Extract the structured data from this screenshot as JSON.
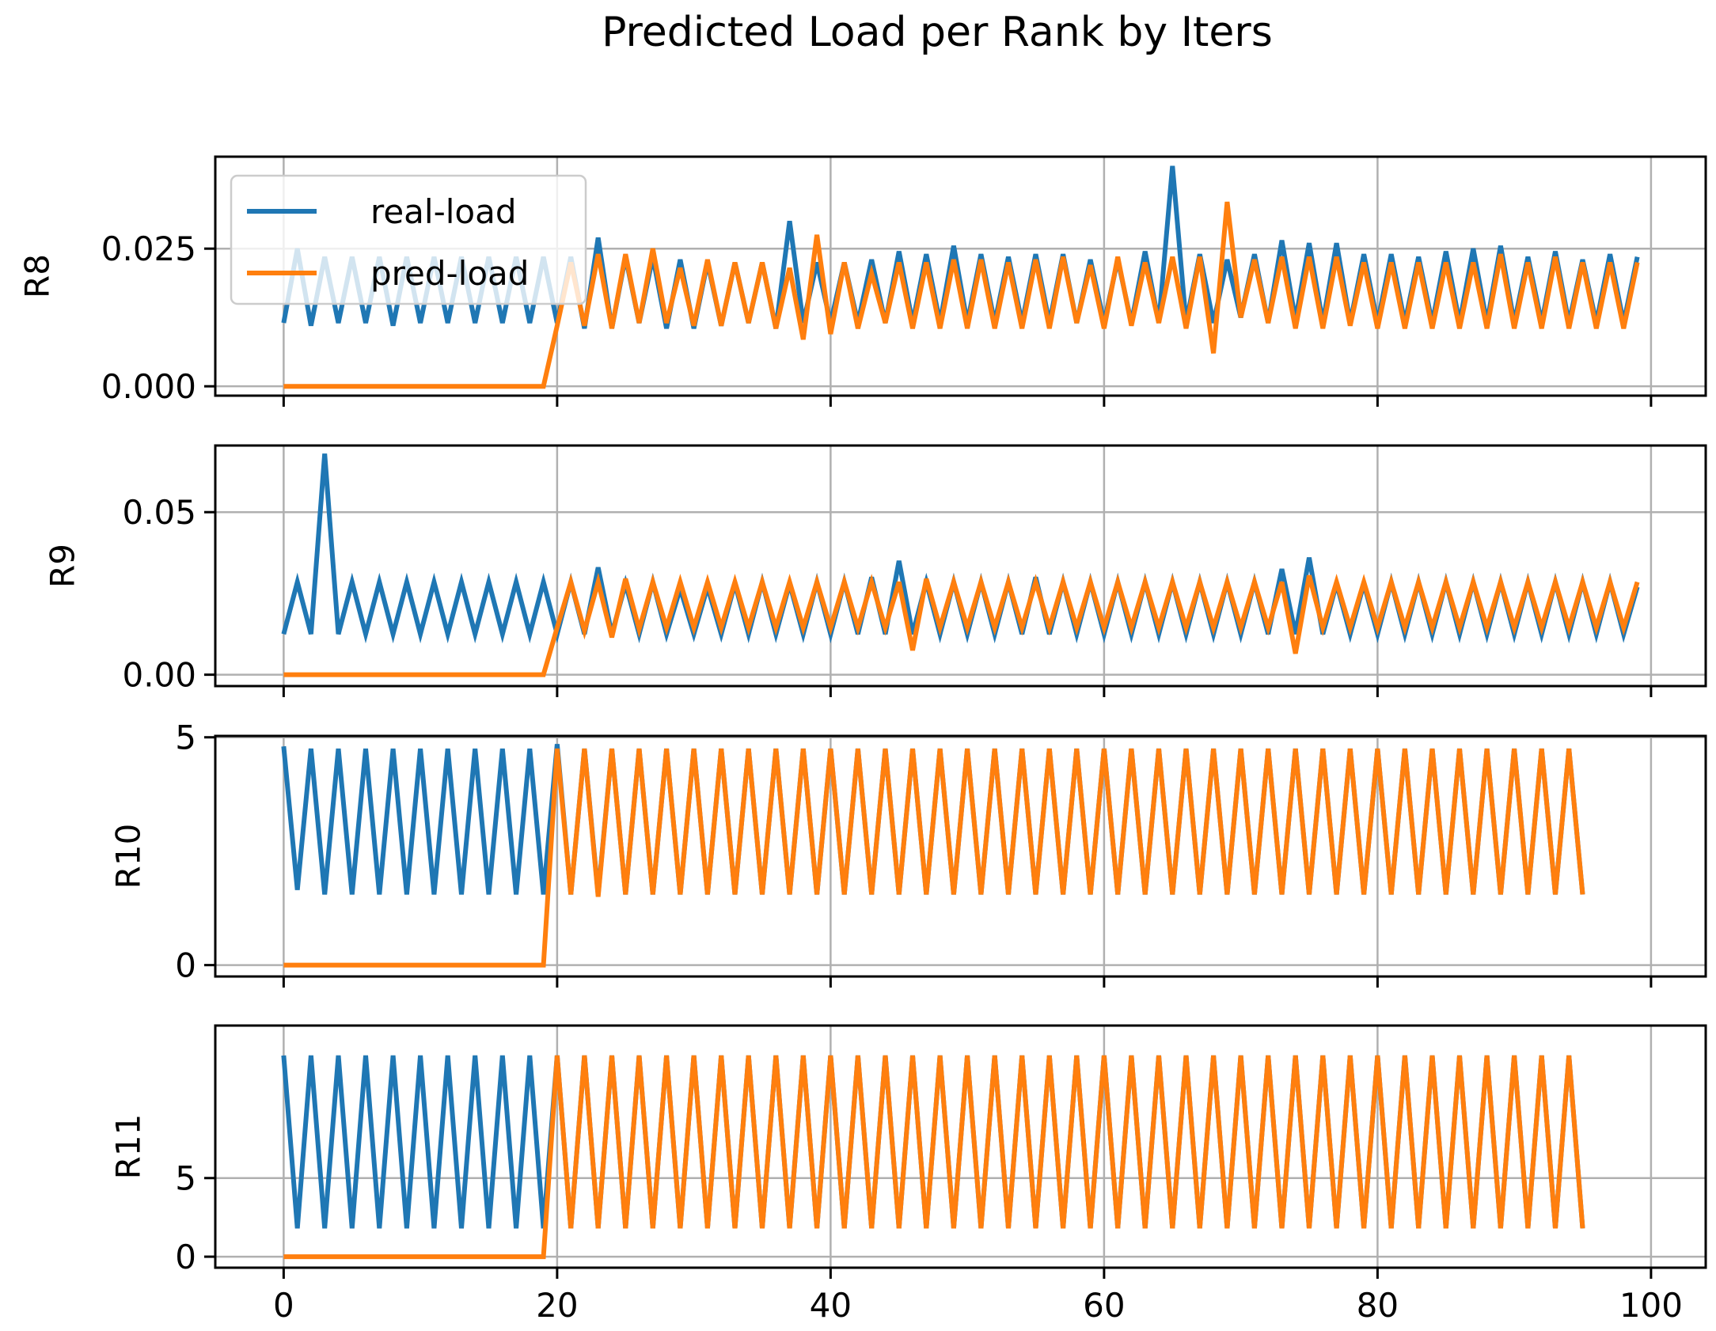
{
  "chart_data": {
    "type": "line",
    "title": "Predicted Load per Rank by Iters",
    "xlabel": "",
    "x_ticks": [
      0,
      20,
      40,
      60,
      80,
      100
    ],
    "xlim": [
      -5,
      104
    ],
    "grid": true,
    "legend": {
      "placement": "top-left",
      "entries": [
        "real-load",
        "pred-load"
      ]
    },
    "colors": {
      "real-load": "#1f77b4",
      "pred-load": "#ff7f0e"
    },
    "x": "0..99 (iteration index, one value per iteration)",
    "subplots": [
      {
        "ylabel": "R8",
        "ylim": [
          -0.0017,
          0.0417
        ],
        "y_ticks": [
          0.0,
          0.025
        ],
        "y_tick_labels": [
          "0.000",
          "0.025"
        ],
        "show_legend": true,
        "series": [
          {
            "name": "real-load",
            "values": [
              0.0115,
              0.025,
              0.011,
              0.0235,
              0.0115,
              0.0235,
              0.0115,
              0.0235,
              0.011,
              0.0235,
              0.0115,
              0.0235,
              0.0115,
              0.0235,
              0.0115,
              0.0235,
              0.0115,
              0.0235,
              0.0115,
              0.0235,
              0.0115,
              0.0235,
              0.0105,
              0.027,
              0.0105,
              0.0235,
              0.0115,
              0.0235,
              0.0105,
              0.023,
              0.0105,
              0.0225,
              0.011,
              0.0225,
              0.0115,
              0.0225,
              0.0105,
              0.03,
              0.0115,
              0.0225,
              0.0115,
              0.0225,
              0.0115,
              0.023,
              0.0115,
              0.0245,
              0.0115,
              0.024,
              0.0115,
              0.0255,
              0.0115,
              0.024,
              0.0115,
              0.0235,
              0.0115,
              0.024,
              0.0115,
              0.024,
              0.0115,
              0.023,
              0.0115,
              0.023,
              0.0115,
              0.0245,
              0.0115,
              0.04,
              0.0115,
              0.024,
              0.0115,
              0.023,
              0.0125,
              0.024,
              0.0115,
              0.0265,
              0.012,
              0.026,
              0.0115,
              0.026,
              0.0115,
              0.024,
              0.0115,
              0.024,
              0.0115,
              0.0235,
              0.0115,
              0.0245,
              0.0115,
              0.025,
              0.0115,
              0.0255,
              0.0115,
              0.0235,
              0.0115,
              0.0245,
              0.0115,
              0.023,
              0.0115,
              0.024,
              0.0115,
              0.0235
            ]
          },
          {
            "name": "pred-load",
            "values": [
              0.0,
              0.0,
              0.0,
              0.0,
              0.0,
              0.0,
              0.0,
              0.0,
              0.0,
              0.0,
              0.0,
              0.0,
              0.0,
              0.0,
              0.0,
              0.0,
              0.0,
              0.0,
              0.0,
              0.0,
              0.011,
              0.0225,
              0.011,
              0.024,
              0.0105,
              0.024,
              0.0115,
              0.025,
              0.0115,
              0.0215,
              0.011,
              0.023,
              0.011,
              0.0225,
              0.0115,
              0.0225,
              0.0105,
              0.0215,
              0.0085,
              0.0275,
              0.0095,
              0.0225,
              0.0105,
              0.0205,
              0.0115,
              0.0225,
              0.0105,
              0.0225,
              0.0105,
              0.023,
              0.0105,
              0.023,
              0.0105,
              0.0225,
              0.0105,
              0.023,
              0.0105,
              0.0235,
              0.0115,
              0.022,
              0.0105,
              0.0235,
              0.011,
              0.0225,
              0.0115,
              0.0235,
              0.0105,
              0.0235,
              0.006,
              0.0335,
              0.0125,
              0.023,
              0.0115,
              0.0235,
              0.0105,
              0.0235,
              0.0105,
              0.0235,
              0.011,
              0.0225,
              0.0105,
              0.0225,
              0.0105,
              0.0225,
              0.0105,
              0.0225,
              0.0105,
              0.0225,
              0.0105,
              0.024,
              0.0105,
              0.0225,
              0.0105,
              0.0235,
              0.0105,
              0.0225,
              0.0105,
              0.0225,
              0.0105,
              0.0225
            ]
          }
        ]
      },
      {
        "ylabel": "R9",
        "ylim": [
          -0.0035,
          0.0705
        ],
        "y_ticks": [
          0.0,
          0.05
        ],
        "y_tick_labels": [
          "0.00",
          "0.05"
        ],
        "show_legend": false,
        "series": [
          {
            "name": "real-load",
            "values": [
              0.0125,
              0.0285,
              0.0125,
              0.068,
              0.0125,
              0.0285,
              0.0125,
              0.0285,
              0.0125,
              0.0285,
              0.0125,
              0.0285,
              0.0125,
              0.0285,
              0.0125,
              0.0285,
              0.0125,
              0.0285,
              0.0125,
              0.0285,
              0.0125,
              0.0285,
              0.0125,
              0.033,
              0.0125,
              0.028,
              0.0125,
              0.0285,
              0.0125,
              0.0265,
              0.0125,
              0.027,
              0.0125,
              0.028,
              0.0125,
              0.0285,
              0.0125,
              0.028,
              0.0125,
              0.0285,
              0.0125,
              0.0285,
              0.0125,
              0.03,
              0.0125,
              0.035,
              0.0125,
              0.0285,
              0.0125,
              0.0285,
              0.0125,
              0.0285,
              0.0125,
              0.0285,
              0.0125,
              0.03,
              0.0125,
              0.0285,
              0.0125,
              0.0285,
              0.0125,
              0.0285,
              0.0125,
              0.0285,
              0.0125,
              0.0285,
              0.0125,
              0.0285,
              0.0125,
              0.0285,
              0.0125,
              0.0285,
              0.0125,
              0.0325,
              0.0125,
              0.036,
              0.0125,
              0.028,
              0.0125,
              0.028,
              0.0125,
              0.0285,
              0.0125,
              0.0285,
              0.0125,
              0.0285,
              0.0125,
              0.0285,
              0.0125,
              0.0285,
              0.0125,
              0.0285,
              0.0125,
              0.0285,
              0.0125,
              0.0285,
              0.0125,
              0.0285,
              0.0125,
              0.027
            ]
          },
          {
            "name": "pred-load",
            "values": [
              0.0,
              0.0,
              0.0,
              0.0,
              0.0,
              0.0,
              0.0,
              0.0,
              0.0,
              0.0,
              0.0,
              0.0,
              0.0,
              0.0,
              0.0,
              0.0,
              0.0,
              0.0,
              0.0,
              0.0,
              0.0145,
              0.0285,
              0.0135,
              0.0285,
              0.0115,
              0.0295,
              0.014,
              0.0285,
              0.0145,
              0.0285,
              0.0145,
              0.0285,
              0.0145,
              0.0285,
              0.0145,
              0.0285,
              0.0145,
              0.0285,
              0.0145,
              0.0285,
              0.0145,
              0.0285,
              0.0145,
              0.0285,
              0.0145,
              0.0285,
              0.0075,
              0.0295,
              0.0145,
              0.0285,
              0.0145,
              0.0285,
              0.0145,
              0.0285,
              0.0145,
              0.0285,
              0.0145,
              0.0285,
              0.0145,
              0.0285,
              0.0145,
              0.0285,
              0.0145,
              0.0285,
              0.0145,
              0.0285,
              0.0145,
              0.0285,
              0.0145,
              0.0285,
              0.0145,
              0.0285,
              0.0145,
              0.0285,
              0.0065,
              0.0305,
              0.0145,
              0.0285,
              0.0145,
              0.0285,
              0.0145,
              0.0285,
              0.0145,
              0.0285,
              0.0145,
              0.0285,
              0.0145,
              0.0285,
              0.0145,
              0.0285,
              0.0145,
              0.0285,
              0.0145,
              0.0285,
              0.0145,
              0.0285,
              0.0145,
              0.0285,
              0.0145,
              0.0285
            ]
          }
        ]
      },
      {
        "ylabel": "R10",
        "ylim": [
          -0.25,
          5.03
        ],
        "y_ticks": [
          0,
          5
        ],
        "y_tick_labels": [
          "0",
          "5"
        ],
        "show_legend": false,
        "series": [
          {
            "name": "real-load",
            "values": [
              4.8,
              1.65,
              4.75,
              1.55,
              4.75,
              1.55,
              4.75,
              1.55,
              4.75,
              1.55,
              4.75,
              1.55,
              4.75,
              1.55,
              4.75,
              1.55,
              4.75,
              1.55,
              4.75,
              1.55,
              4.85,
              1.55,
              4.75,
              1.55,
              4.75,
              1.55,
              4.75,
              1.55,
              4.75,
              1.55,
              4.75,
              1.55,
              4.75,
              1.55,
              4.75,
              1.55,
              4.75,
              1.55,
              4.75,
              1.55,
              4.75,
              1.55,
              4.75,
              1.55,
              4.75,
              1.55,
              4.75,
              1.55,
              4.75,
              1.55,
              4.75,
              1.55,
              4.75,
              1.55,
              4.75,
              1.55,
              4.75,
              1.55,
              4.75,
              1.55,
              4.75,
              1.55,
              4.75,
              1.55,
              4.75,
              1.55,
              4.75,
              1.55,
              4.75,
              1.55,
              4.75,
              1.55,
              4.75,
              1.55,
              4.75,
              1.55,
              4.75,
              1.55,
              4.75,
              1.55,
              4.75,
              1.55,
              4.75,
              1.55,
              4.75,
              1.55,
              4.75,
              1.55,
              4.75,
              1.55,
              4.75,
              1.55,
              4.75,
              1.55,
              4.75,
              1.55
            ]
          },
          {
            "name": "pred-load",
            "values": [
              0.0,
              0.0,
              0.0,
              0.0,
              0.0,
              0.0,
              0.0,
              0.0,
              0.0,
              0.0,
              0.0,
              0.0,
              0.0,
              0.0,
              0.0,
              0.0,
              0.0,
              0.0,
              0.0,
              0.0,
              4.75,
              1.55,
              4.75,
              1.5,
              4.75,
              1.55,
              4.75,
              1.55,
              4.75,
              1.55,
              4.75,
              1.55,
              4.75,
              1.55,
              4.75,
              1.55,
              4.75,
              1.55,
              4.75,
              1.55,
              4.75,
              1.55,
              4.75,
              1.55,
              4.75,
              1.55,
              4.75,
              1.55,
              4.75,
              1.55,
              4.75,
              1.55,
              4.75,
              1.55,
              4.75,
              1.55,
              4.75,
              1.55,
              4.75,
              1.55,
              4.75,
              1.55,
              4.75,
              1.55,
              4.75,
              1.55,
              4.75,
              1.55,
              4.75,
              1.55,
              4.75,
              1.55,
              4.75,
              1.55,
              4.75,
              1.55,
              4.75,
              1.55,
              4.75,
              1.55,
              4.75,
              1.55,
              4.75,
              1.55,
              4.75,
              1.55,
              4.75,
              1.55,
              4.75,
              1.55,
              4.75,
              1.55,
              4.75,
              1.55,
              4.75,
              1.55
            ]
          }
        ]
      },
      {
        "ylabel": "R11",
        "ylim": [
          -0.7,
          14.7
        ],
        "y_ticks": [
          0,
          5
        ],
        "y_tick_labels": [
          "0",
          "5"
        ],
        "show_legend": false,
        "series": [
          {
            "name": "real-load",
            "values": [
              12.8,
              1.8,
              12.8,
              1.8,
              12.8,
              1.8,
              12.8,
              1.8,
              12.8,
              1.8,
              12.8,
              1.8,
              12.8,
              1.8,
              12.8,
              1.8,
              12.8,
              1.8,
              12.8,
              1.8,
              12.8,
              1.8,
              12.8,
              1.8,
              12.8,
              1.8,
              12.8,
              1.8,
              12.8,
              1.8,
              12.8,
              1.8,
              12.8,
              1.8,
              12.8,
              1.8,
              12.8,
              1.8,
              12.8,
              1.8,
              12.8,
              1.8,
              12.8,
              1.8,
              12.8,
              1.8,
              12.8,
              1.8,
              12.8,
              1.8,
              12.8,
              1.8,
              12.8,
              1.8,
              12.8,
              1.8,
              12.8,
              1.8,
              12.8,
              1.8,
              12.8,
              1.8,
              12.8,
              1.8,
              12.8,
              1.8,
              12.8,
              1.8,
              12.8,
              1.8,
              12.8,
              1.8,
              12.8,
              1.8,
              12.8,
              1.8,
              12.8,
              1.8,
              12.8,
              1.8,
              12.8,
              1.8,
              12.8,
              1.8,
              12.8,
              1.8,
              12.8,
              1.8,
              12.8,
              1.8,
              12.8,
              1.8,
              12.8,
              1.8,
              12.8,
              1.8
            ]
          },
          {
            "name": "pred-load",
            "values": [
              0.0,
              0.0,
              0.0,
              0.0,
              0.0,
              0.0,
              0.0,
              0.0,
              0.0,
              0.0,
              0.0,
              0.0,
              0.0,
              0.0,
              0.0,
              0.0,
              0.0,
              0.0,
              0.0,
              0.0,
              12.8,
              1.8,
              12.8,
              1.8,
              12.8,
              1.8,
              12.8,
              1.8,
              12.8,
              1.8,
              12.8,
              1.8,
              12.8,
              1.8,
              12.8,
              1.8,
              12.8,
              1.8,
              12.8,
              1.8,
              12.8,
              1.8,
              12.8,
              1.8,
              12.8,
              1.8,
              12.8,
              1.8,
              12.8,
              1.8,
              12.8,
              1.8,
              12.8,
              1.8,
              12.8,
              1.8,
              12.8,
              1.8,
              12.8,
              1.8,
              12.8,
              1.8,
              12.8,
              1.8,
              12.8,
              1.8,
              12.8,
              1.8,
              12.8,
              1.8,
              12.8,
              1.8,
              12.8,
              1.8,
              12.8,
              1.8,
              12.8,
              1.8,
              12.8,
              1.8,
              12.8,
              1.8,
              12.8,
              1.8,
              12.8,
              1.8,
              12.8,
              1.8,
              12.8,
              1.8,
              12.8,
              1.8,
              12.8,
              1.8,
              12.8,
              1.8
            ]
          }
        ]
      }
    ]
  }
}
